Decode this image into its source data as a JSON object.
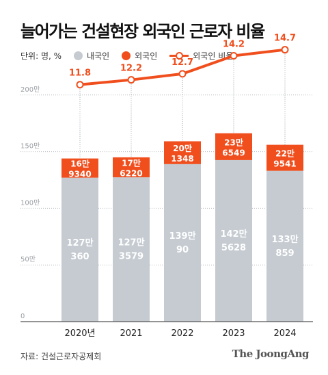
{
  "header": {
    "title": "늘어가는 건설현장 외국인 근로자 비율"
  },
  "legend": {
    "unit": "단위: 명, %",
    "domestic": "내국인",
    "foreign": "외국인",
    "ratio": "외국인 비율"
  },
  "colors": {
    "domestic": "#c5cbd1",
    "foreign": "#f04e1d",
    "ratio_line": "#f04e1d",
    "grid": "#b8bcc0",
    "axis_text": "#9a9ea3"
  },
  "chart_data": {
    "type": "bar",
    "stacked": true,
    "categories": [
      "2020년",
      "2021",
      "2022",
      "2023",
      "2024"
    ],
    "ylim": [
      0,
      2200000
    ],
    "y_ticks": [
      0,
      500000,
      1000000,
      1500000,
      2000000
    ],
    "y_tick_labels": [
      "0",
      "50만",
      "100만",
      "150만",
      "200만"
    ],
    "series": [
      {
        "name": "내국인",
        "values": [
          1270360,
          1273579,
          1390090,
          1425628,
          1330859
        ],
        "labels": [
          [
            "127만",
            "360"
          ],
          [
            "127만",
            "3579"
          ],
          [
            "139만",
            "90"
          ],
          [
            "142만",
            "5628"
          ],
          [
            "133만",
            "859"
          ]
        ]
      },
      {
        "name": "외국인",
        "values": [
          169340,
          176220,
          201348,
          236549,
          229541
        ],
        "labels": [
          [
            "16만",
            "9340"
          ],
          [
            "17만",
            "6220"
          ],
          [
            "20만",
            "1348"
          ],
          [
            "23만",
            "6549"
          ],
          [
            "22만",
            "9541"
          ]
        ]
      }
    ],
    "line_series": {
      "name": "외국인 비율",
      "values": [
        11.8,
        12.2,
        12.7,
        14.2,
        14.7
      ],
      "labels": [
        "11.8",
        "12.2",
        "12.7",
        "14.2",
        "14.7"
      ]
    }
  },
  "footer": {
    "source": "자료: 건설근로자공제회",
    "brand": "The JoongAng"
  }
}
